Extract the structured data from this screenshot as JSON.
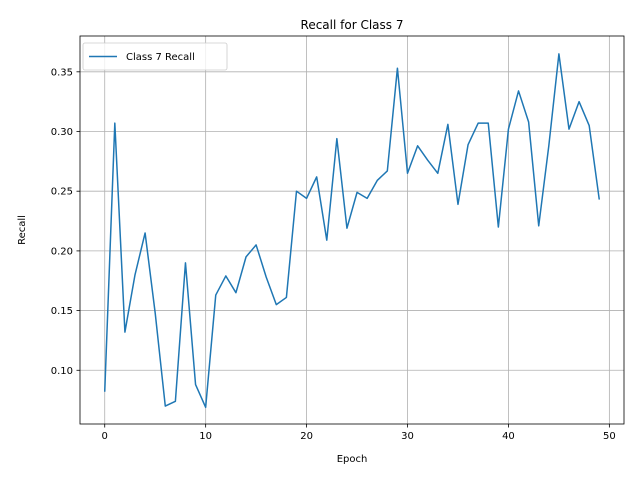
{
  "chart_data": {
    "type": "line",
    "title": "Recall for Class 7",
    "xlabel": "Epoch",
    "ylabel": "Recall",
    "xlim": [
      -2.45,
      51.45
    ],
    "ylim": [
      0.055,
      0.38
    ],
    "xticks": [
      0,
      10,
      20,
      30,
      40,
      50
    ],
    "yticks": [
      0.1,
      0.15,
      0.2,
      0.25,
      0.3,
      0.35
    ],
    "xtick_labels": [
      "0",
      "10",
      "20",
      "30",
      "40",
      "50"
    ],
    "ytick_labels": [
      "0.10",
      "0.15",
      "0.20",
      "0.25",
      "0.30",
      "0.35"
    ],
    "grid": true,
    "legend_position": "top-left",
    "series": [
      {
        "name": "Class 7 Recall",
        "color": "#1f77b4",
        "x": [
          0,
          1,
          2,
          3,
          4,
          5,
          6,
          7,
          8,
          9,
          10,
          11,
          12,
          13,
          14,
          15,
          16,
          17,
          18,
          19,
          20,
          21,
          22,
          23,
          24,
          25,
          26,
          27,
          28,
          29,
          30,
          31,
          32,
          33,
          34,
          35,
          36,
          37,
          38,
          39,
          40,
          41,
          42,
          43,
          44,
          45,
          46,
          47,
          48,
          49
        ],
        "values": [
          0.082,
          0.307,
          0.132,
          0.18,
          0.215,
          0.148,
          0.07,
          0.074,
          0.19,
          0.088,
          0.069,
          0.163,
          0.179,
          0.165,
          0.195,
          0.205,
          0.178,
          0.155,
          0.161,
          0.25,
          0.244,
          0.262,
          0.209,
          0.294,
          0.219,
          0.249,
          0.244,
          0.259,
          0.267,
          0.353,
          0.265,
          0.288,
          0.276,
          0.265,
          0.306,
          0.239,
          0.289,
          0.307,
          0.307,
          0.22,
          0.302,
          0.334,
          0.308,
          0.221,
          0.288,
          0.365,
          0.302,
          0.325,
          0.305,
          0.243
        ]
      }
    ]
  }
}
